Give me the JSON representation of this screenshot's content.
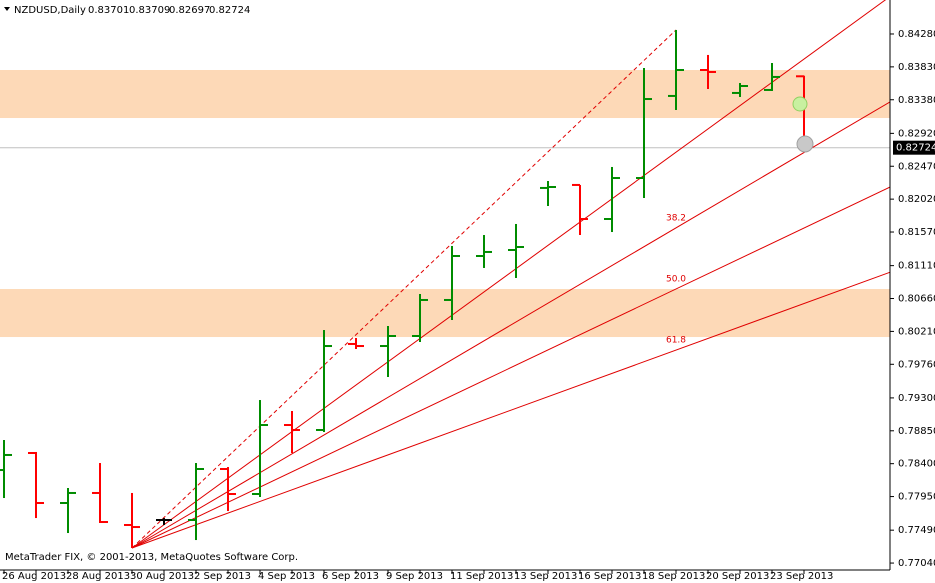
{
  "chart_data": {
    "type": "ohlc",
    "title": "NZDUSD,Daily",
    "copyright": "MetaTrader FIX, © 2001-2013, MetaQuotes Software Corp.",
    "categories": [
      "26 Aug 2013",
      null,
      "28 Aug 2013",
      null,
      "30 Aug 2013",
      null,
      "2 Sep 2013",
      null,
      "4 Sep 2013",
      null,
      "6 Sep 2013",
      null,
      "9 Sep 2013",
      null,
      "11 Sep 2013",
      null,
      "13 Sep 2013",
      null,
      "16 Sep 2013",
      null,
      "18 Sep 2013",
      null,
      "20 Sep 2013",
      null,
      "23 Sep 2013",
      null
    ],
    "open": [
      0.78313,
      0.78546,
      0.77862,
      0.77999,
      0.77561,
      0.77629,
      0.77629,
      0.78327,
      0.77985,
      0.78929,
      0.78861,
      0.80038,
      0.8001,
      0.80147,
      0.8064,
      0.81242,
      0.81324,
      0.82173,
      0.82214,
      0.81748,
      0.82309,
      0.83432,
      0.83787,
      0.83473,
      0.83514,
      0.83701
    ],
    "high": [
      0.78724,
      0.7856,
      0.78067,
      0.78409,
      0.77999,
      0.77656,
      0.78409,
      0.78354,
      0.79271,
      0.79121,
      0.80229,
      0.8012,
      0.80284,
      0.80722,
      0.81379,
      0.81529,
      0.8168,
      0.82268,
      0.82214,
      0.8246,
      0.83815,
      0.84335,
      0.83993,
      0.83609,
      0.83883,
      0.83709
    ],
    "low": [
      0.7793,
      0.77656,
      0.77451,
      0.77588,
      0.77246,
      0.77561,
      0.77355,
      0.77752,
      0.77944,
      0.78546,
      0.78833,
      0.79969,
      0.79586,
      0.80065,
      0.80366,
      0.81078,
      0.80941,
      0.81926,
      0.81529,
      0.8157,
      0.82036,
      0.8324,
      0.83527,
      0.83418,
      0.835,
      0.82697
    ],
    "close": [
      0.78519,
      0.77862,
      0.77999,
      0.77602,
      0.77533,
      0.77629,
      0.78327,
      0.77985,
      0.78929,
      0.78861,
      0.8001,
      0.8001,
      0.80147,
      0.8064,
      0.81242,
      0.81297,
      0.81365,
      0.82186,
      0.81748,
      0.82309,
      0.8339,
      0.83787,
      0.8376,
      0.83568,
      0.83692,
      0.82724
    ],
    "up_color": "#008c00",
    "down_color": "#ff0000",
    "doji_color": "#000000",
    "ylim": [
      0.76945,
      0.84745
    ],
    "yticks": [
      {
        "value": 0.8428,
        "label": "0.84280"
      },
      {
        "value": 0.8383,
        "label": "0.83830"
      },
      {
        "value": 0.8338,
        "label": "0.83380"
      },
      {
        "value": 0.8292,
        "label": "0.82920"
      },
      {
        "value": 0.8247,
        "label": "0.82470"
      },
      {
        "value": 0.8202,
        "label": "0.82020"
      },
      {
        "value": 0.8157,
        "label": "0.81570"
      },
      {
        "value": 0.8111,
        "label": "0.81110"
      },
      {
        "value": 0.8066,
        "label": "0.80660"
      },
      {
        "value": 0.8021,
        "label": "0.80210"
      },
      {
        "value": 0.7976,
        "label": "0.79760"
      },
      {
        "value": 0.793,
        "label": "0.79300"
      },
      {
        "value": 0.7885,
        "label": "0.78850"
      },
      {
        "value": 0.784,
        "label": "0.78400"
      },
      {
        "value": 0.7795,
        "label": "0.77950"
      },
      {
        "value": 0.7749,
        "label": "0.77490"
      },
      {
        "value": 0.7704,
        "label": "0.77040"
      }
    ],
    "zones": [
      {
        "from": 0.8313,
        "to": 0.83787,
        "color": "#fdd9b7"
      },
      {
        "from": 0.80133,
        "to": 0.8079,
        "color": "#fdd9b7"
      }
    ],
    "fan_color": "#e00000",
    "fan_levels": [
      "38.2",
      "50.0",
      "61.8"
    ]
  }
}
